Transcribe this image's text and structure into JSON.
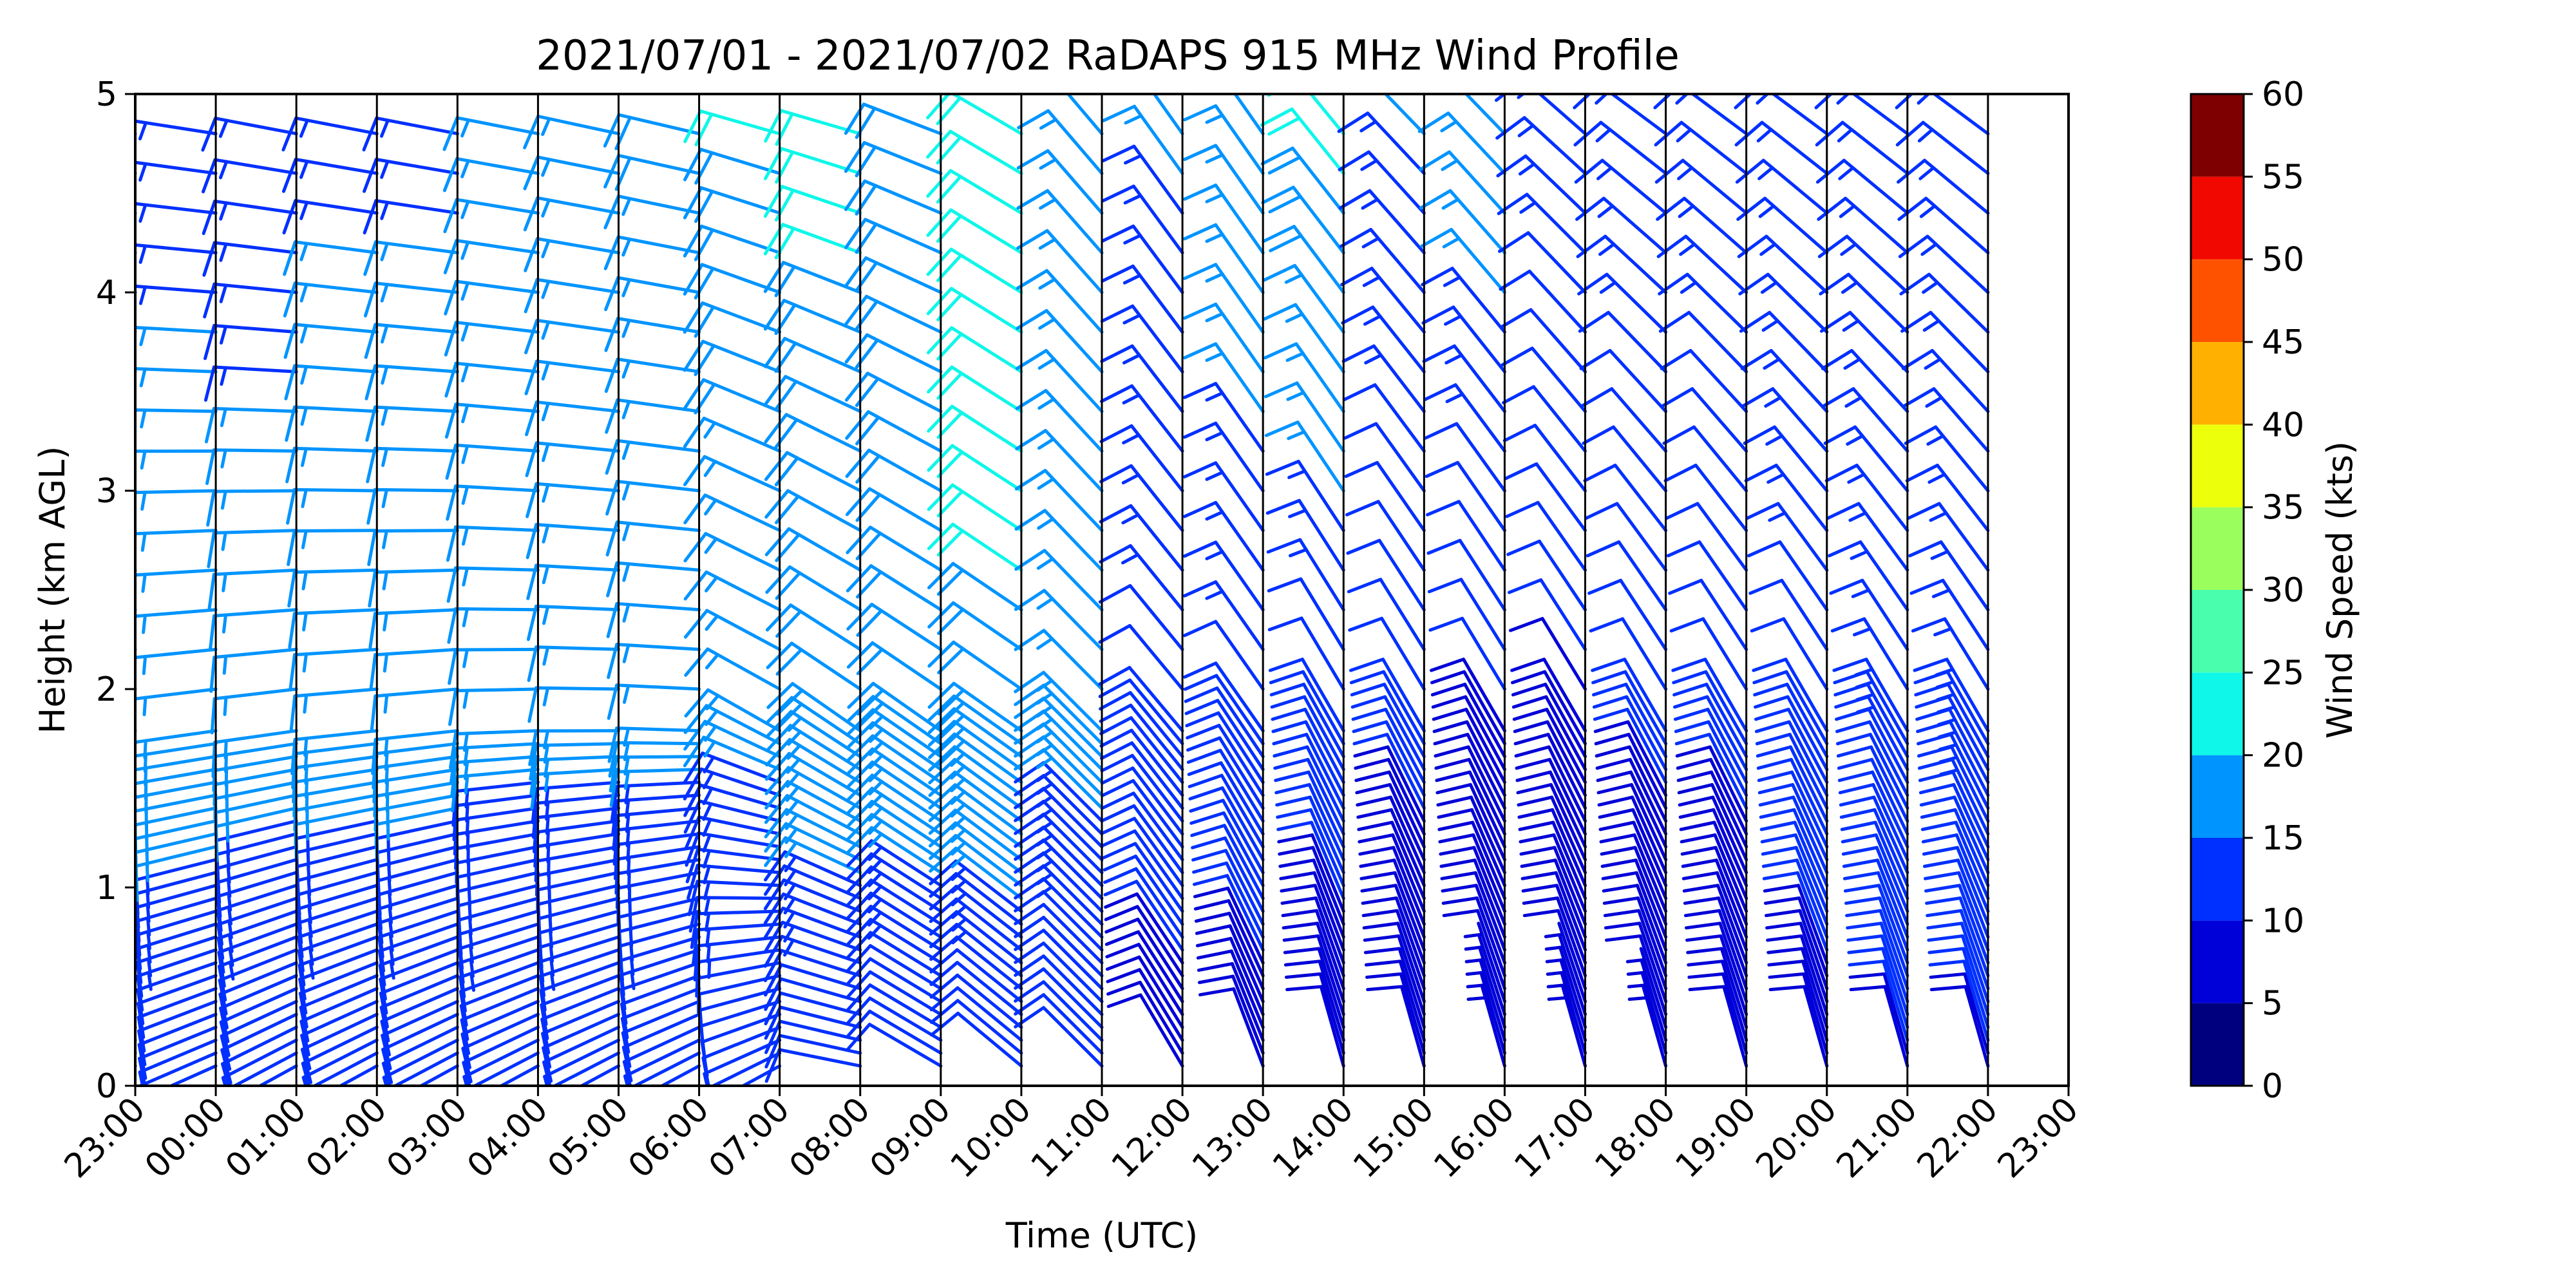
{
  "chart_data": {
    "type": "wind-barb profile",
    "title": "2021/07/01 - 2021/07/02 RaDAPS 915 MHz Wind Profile",
    "xlabel": "Time (UTC)",
    "ylabel": "Height (km AGL)",
    "x_ticks": [
      "23:00",
      "00:00",
      "01:00",
      "02:00",
      "03:00",
      "04:00",
      "05:00",
      "06:00",
      "07:00",
      "08:00",
      "09:00",
      "10:00",
      "11:00",
      "12:00",
      "13:00",
      "14:00",
      "15:00",
      "16:00",
      "17:00",
      "18:00",
      "19:00",
      "20:00",
      "21:00",
      "22:00",
      "23:00"
    ],
    "y_ticks": [
      "0",
      "1",
      "2",
      "3",
      "4",
      "5"
    ],
    "ylim": [
      0,
      5
    ],
    "grid": "vertical lines at each hour",
    "colorbar": {
      "label": "Wind Speed (kts)",
      "ticks": [
        "0",
        "5",
        "10",
        "15",
        "20",
        "25",
        "30",
        "35",
        "40",
        "45",
        "50",
        "55",
        "60"
      ],
      "colors": [
        "#00007f",
        "#0000d8",
        "#0030ff",
        "#0094ff",
        "#0ef7e9",
        "#49ffad",
        "#9aff5d",
        "#ecff0b",
        "#ffb000",
        "#ff5200",
        "#f10800",
        "#7f0000"
      ]
    },
    "profiles": [
      {
        "time": "23:00",
        "low": {
          "spd": 9,
          "dir": 245
        },
        "mid": {
          "spd": 17,
          "dir": 260
        },
        "up": {
          "spd": 13,
          "dir": 280
        }
      },
      {
        "time": "00:00",
        "low": {
          "spd": 10,
          "dir": 245
        },
        "mid": {
          "spd": 17,
          "dir": 262
        },
        "up": {
          "spd": 13,
          "dir": 280
        }
      },
      {
        "time": "01:00",
        "low": {
          "spd": 10,
          "dir": 240
        },
        "mid": {
          "spd": 16,
          "dir": 262
        },
        "up": {
          "spd": 13,
          "dir": 282
        }
      },
      {
        "time": "02:00",
        "low": {
          "spd": 10,
          "dir": 240
        },
        "mid": {
          "spd": 16,
          "dir": 264
        },
        "up": {
          "spd": 14,
          "dir": 282
        }
      },
      {
        "time": "03:00",
        "low": {
          "spd": 10,
          "dir": 240
        },
        "mid": {
          "spd": 16,
          "dir": 264
        },
        "up": {
          "spd": 14,
          "dir": 282
        }
      },
      {
        "time": "04:00",
        "low": {
          "spd": 11,
          "dir": 240
        },
        "mid": {
          "spd": 15,
          "dir": 268
        },
        "up": {
          "spd": 16,
          "dir": 282
        }
      },
      {
        "time": "05:00",
        "low": {
          "spd": 11,
          "dir": 240
        },
        "mid": {
          "spd": 15,
          "dir": 270
        },
        "up": {
          "spd": 17,
          "dir": 283
        }
      },
      {
        "time": "06:00",
        "low": {
          "spd": 11,
          "dir": 240
        },
        "mid": {
          "spd": 15,
          "dir": 272
        },
        "up": {
          "spd": 18,
          "dir": 284
        }
      },
      {
        "time": "07:00",
        "low": {
          "spd": 11,
          "dir": 238
        },
        "mid": {
          "spd": 15,
          "dir": 300
        },
        "up": {
          "spd": 20,
          "dir": 285
        }
      },
      {
        "time": "08:00",
        "low": {
          "spd": 10,
          "dir": 280
        },
        "mid": {
          "spd": 18,
          "dir": 305
        },
        "up": {
          "spd": 20,
          "dir": 285
        }
      },
      {
        "time": "09:00",
        "low": {
          "spd": 10,
          "dir": 300
        },
        "mid": {
          "spd": 18,
          "dir": 305
        },
        "up": {
          "spd": 19,
          "dir": 290
        }
      },
      {
        "time": "10:00",
        "low": {
          "spd": 10,
          "dir": 310
        },
        "mid": {
          "spd": 19,
          "dir": 305
        },
        "up": {
          "spd": 21,
          "dir": 300
        }
      },
      {
        "time": "11:00",
        "low": {
          "spd": 10,
          "dir": 315
        },
        "mid": {
          "spd": 16,
          "dir": 315
        },
        "up": {
          "spd": 17,
          "dir": 320
        }
      },
      {
        "time": "12:00",
        "low": {
          "spd": 8,
          "dir": 330
        },
        "mid": {
          "spd": 12,
          "dir": 320
        },
        "up": {
          "spd": 15,
          "dir": 325
        }
      },
      {
        "time": "13:00",
        "low": {
          "spd": 8,
          "dir": 340
        },
        "mid": {
          "spd": 12,
          "dir": 325
        },
        "up": {
          "spd": 17,
          "dir": 325
        }
      },
      {
        "time": "14:00",
        "low": {
          "spd": 8,
          "dir": 345
        },
        "mid": {
          "spd": 11,
          "dir": 330
        },
        "up": {
          "spd": 21,
          "dir": 320
        }
      },
      {
        "time": "15:00",
        "low": {
          "spd": 8,
          "dir": 345
        },
        "mid": {
          "spd": 10,
          "dir": 330
        },
        "up": {
          "spd": 15,
          "dir": 315
        }
      },
      {
        "time": "16:00",
        "low": {
          "spd": 7,
          "dir": 345
        },
        "mid": {
          "spd": 9,
          "dir": 330
        },
        "up": {
          "spd": 17,
          "dir": 315
        }
      },
      {
        "time": "17:00",
        "low": {
          "spd": 7,
          "dir": 345
        },
        "mid": {
          "spd": 9,
          "dir": 330
        },
        "up": {
          "spd": 14,
          "dir": 310
        }
      },
      {
        "time": "18:00",
        "low": {
          "spd": 7,
          "dir": 345
        },
        "mid": {
          "spd": 10,
          "dir": 330
        },
        "up": {
          "spd": 14,
          "dir": 305
        }
      },
      {
        "time": "19:00",
        "low": {
          "spd": 8,
          "dir": 345
        },
        "mid": {
          "spd": 10,
          "dir": 330
        },
        "up": {
          "spd": 14,
          "dir": 305
        }
      },
      {
        "time": "20:00",
        "low": {
          "spd": 8,
          "dir": 345
        },
        "mid": {
          "spd": 12,
          "dir": 330
        },
        "up": {
          "spd": 14,
          "dir": 305
        }
      },
      {
        "time": "21:00",
        "low": {
          "spd": 9,
          "dir": 345
        },
        "mid": {
          "spd": 13,
          "dir": 330
        },
        "up": {
          "spd": 13,
          "dir": 305
        }
      },
      {
        "time": "22:00",
        "low": {
          "spd": 9,
          "dir": 345
        },
        "mid": {
          "spd": 14,
          "dir": 330
        },
        "up": {
          "spd": 14,
          "dir": 305
        }
      }
    ]
  }
}
